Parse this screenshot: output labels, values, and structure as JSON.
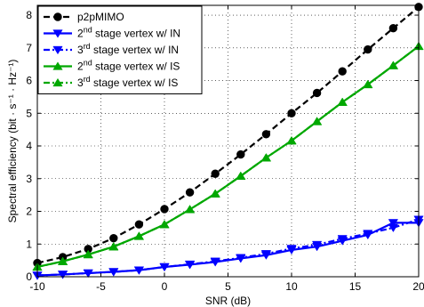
{
  "chart_data": {
    "type": "line",
    "xlabel": "SNR (dB)",
    "ylabel": "Spectral efficiency (bit · s⁻¹ · Hz⁻¹)",
    "xlim": [
      -10,
      20
    ],
    "ylim": [
      0,
      8.3
    ],
    "xticks": [
      -10,
      -5,
      0,
      5,
      10,
      15,
      20
    ],
    "yticks": [
      0,
      1,
      2,
      3,
      4,
      5,
      6,
      7,
      8
    ],
    "grid": true,
    "legend_position": "top-left",
    "x": [
      -10,
      -8,
      -6,
      -4,
      -2,
      0,
      2,
      4,
      6,
      8,
      10,
      12,
      14,
      16,
      18,
      20
    ],
    "series": [
      {
        "name": "p2pMIMO",
        "color": "#000000",
        "line": "dashed",
        "marker": "circle",
        "values": [
          0.42,
          0.6,
          0.85,
          1.18,
          1.6,
          2.07,
          2.58,
          3.15,
          3.74,
          4.36,
          5.0,
          5.62,
          6.28,
          6.95,
          7.6,
          8.25
        ]
      },
      {
        "name": "2nd stage vertex w/ IN",
        "color": "#0000ff",
        "line": "solid",
        "marker": "triangle-down",
        "values": [
          0.04,
          0.07,
          0.11,
          0.15,
          0.2,
          0.3,
          0.37,
          0.45,
          0.56,
          0.66,
          0.82,
          0.92,
          1.1,
          1.28,
          1.65,
          1.65
        ]
      },
      {
        "name": "3rd stage vertex w/ IN",
        "color": "#0000ff",
        "line": "dashdot",
        "marker": "triangle-down",
        "values": [
          0.04,
          0.07,
          0.11,
          0.15,
          0.2,
          0.3,
          0.38,
          0.47,
          0.58,
          0.7,
          0.86,
          0.98,
          1.16,
          1.32,
          1.5,
          1.75
        ]
      },
      {
        "name": "2nd stage vertex w/ IS",
        "color": "#00a800",
        "line": "solid",
        "marker": "triangle-up",
        "values": [
          0.3,
          0.47,
          0.68,
          0.92,
          1.24,
          1.6,
          2.06,
          2.54,
          3.08,
          3.64,
          4.16,
          4.75,
          5.34,
          5.88,
          6.46,
          7.05
        ]
      },
      {
        "name": "3rd stage vertex w/ IS",
        "color": "#00a800",
        "line": "dashdot",
        "marker": "triangle-up",
        "values": [
          0.3,
          0.47,
          0.68,
          0.92,
          1.24,
          1.6,
          2.06,
          2.54,
          3.08,
          3.64,
          4.16,
          4.75,
          5.34,
          5.88,
          6.46,
          7.05
        ]
      }
    ],
    "legend": [
      {
        "prefix": "p2pMIMO",
        "sup": "",
        "rest": ""
      },
      {
        "prefix": "2",
        "sup": "nd",
        "rest": " stage vertex w/ IN"
      },
      {
        "prefix": "3",
        "sup": "rd",
        "rest": " stage vertex w/ IN"
      },
      {
        "prefix": "2",
        "sup": "nd",
        "rest": " stage vertex w/ IS"
      },
      {
        "prefix": "3",
        "sup": "rd",
        "rest": " stage vertex w/ IS"
      }
    ]
  }
}
